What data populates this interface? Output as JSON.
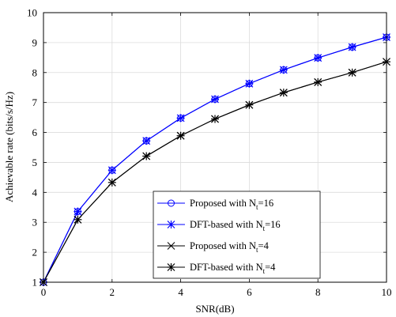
{
  "chart_data": {
    "type": "line",
    "title": "",
    "xlabel": "SNR(dB)",
    "ylabel": "Achievable rate (bits/s/Hz)",
    "xlim": [
      0,
      10
    ],
    "ylim": [
      1,
      10
    ],
    "xticks": [
      "0",
      "2",
      "4",
      "6",
      "8",
      "10"
    ],
    "yticks": [
      "1",
      "2",
      "3",
      "4",
      "5",
      "6",
      "7",
      "8",
      "9",
      "10"
    ],
    "grid": true,
    "legend_position": "lower-right",
    "x": [
      0,
      1,
      2,
      3,
      4,
      5,
      6,
      7,
      8,
      9,
      10
    ],
    "series": [
      {
        "name_main": "Proposed  with N",
        "name_sub": "t",
        "name_tail": "=16",
        "color": "#0000ff",
        "marker": "circle",
        "values": [
          1.0,
          3.36,
          4.74,
          5.72,
          6.48,
          7.11,
          7.63,
          8.09,
          8.49,
          8.85,
          9.18
        ]
      },
      {
        "name_main": "DFT-based  with N",
        "name_sub": "t",
        "name_tail": "=16",
        "color": "#0000ff",
        "marker": "asterisk",
        "values": [
          1.0,
          3.36,
          4.74,
          5.72,
          6.48,
          7.11,
          7.63,
          8.09,
          8.49,
          8.85,
          9.18
        ]
      },
      {
        "name_main": "Proposed with N",
        "name_sub": "t",
        "name_tail": "=4",
        "color": "#000000",
        "marker": "x",
        "values": [
          1.0,
          3.09,
          4.33,
          5.21,
          5.89,
          6.45,
          6.92,
          7.33,
          7.68,
          8.0,
          8.36
        ]
      },
      {
        "name_main": "DFT-based with N",
        "name_sub": "t",
        "name_tail": "=4",
        "color": "#000000",
        "marker": "asterisk",
        "values": [
          1.0,
          3.09,
          4.33,
          5.21,
          5.89,
          6.45,
          6.92,
          7.33,
          7.68,
          8.0,
          8.36
        ]
      }
    ]
  }
}
